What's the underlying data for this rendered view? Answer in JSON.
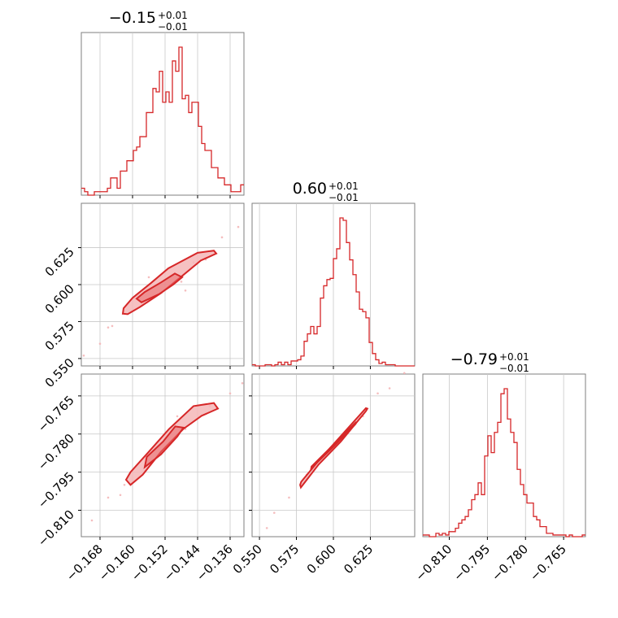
{
  "chart_data": {
    "type": "corner",
    "color": "#d62728",
    "fill_color": "#f4b6b7",
    "grid": true,
    "parameters": [
      {
        "title_main": "−0.15",
        "title_sup": "+0.01",
        "title_sub": "−0.01"
      },
      {
        "title_main": "0.60",
        "title_sup": "+0.01",
        "title_sub": "−0.01"
      },
      {
        "title_main": "−0.79",
        "title_sup": "+0.01",
        "title_sub": "−0.01"
      }
    ],
    "axes": [
      {
        "range": [
          -0.1726,
          -0.1326
        ],
        "ticks": [
          -0.168,
          -0.16,
          -0.152,
          -0.144,
          -0.136
        ],
        "tick_labels": [
          "−0.168",
          "−0.160",
          "−0.152",
          "−0.144",
          "−0.136"
        ]
      },
      {
        "range": [
          0.545,
          0.655
        ],
        "ticks": [
          0.55,
          0.575,
          0.6,
          0.625
        ],
        "tick_labels": [
          "0.550",
          "0.575",
          "0.600",
          "0.625"
        ]
      },
      {
        "range": [
          -0.8204,
          -0.7564
        ],
        "ticks": [
          -0.81,
          -0.795,
          -0.78,
          -0.765
        ],
        "tick_labels": [
          "−0.810",
          "−0.795",
          "−0.780",
          "−0.765"
        ]
      }
    ],
    "histograms": [
      {
        "param": 0,
        "counts": [
          2,
          1,
          0,
          0,
          1,
          1,
          1,
          1,
          2,
          5,
          5,
          2,
          7,
          7,
          10,
          10,
          13,
          14,
          17,
          17,
          24,
          24,
          31,
          30,
          36,
          27,
          30,
          27,
          39,
          36,
          43,
          28,
          29,
          24,
          27,
          27,
          20,
          15,
          13,
          13,
          8,
          8,
          5,
          5,
          3,
          3,
          1,
          1,
          1,
          3
        ]
      },
      {
        "param": 1,
        "counts": [
          1,
          0,
          0,
          0,
          1,
          1,
          0,
          1,
          3,
          1,
          3,
          1,
          4,
          4,
          5,
          8,
          20,
          26,
          32,
          26,
          32,
          55,
          65,
          70,
          71,
          87,
          95,
          120,
          118,
          100,
          86,
          74,
          60,
          46,
          44,
          39,
          19,
          10,
          5,
          2,
          3,
          1,
          1,
          1,
          0,
          0,
          0,
          0,
          0,
          0
        ]
      },
      {
        "param": 2,
        "counts": [
          1,
          1,
          0,
          0,
          2,
          1,
          2,
          1,
          3,
          3,
          5,
          8,
          10,
          12,
          16,
          22,
          25,
          32,
          25,
          48,
          60,
          50,
          62,
          68,
          85,
          88,
          70,
          62,
          56,
          40,
          31,
          25,
          20,
          20,
          12,
          10,
          6,
          6,
          2,
          2,
          1,
          1,
          1,
          1,
          0,
          1,
          0,
          0,
          0,
          1
        ]
      }
    ],
    "scatter": [
      {
        "x_param": 0,
        "y_param": 1,
        "contours": [
          {
            "level": "outer",
            "points": [
              [
                -0.1624,
                0.5803
              ],
              [
                -0.1612,
                0.58
              ],
              [
                -0.1582,
                0.5848
              ],
              [
                -0.153,
                0.5942
              ],
              [
                -0.148,
                0.6054
              ],
              [
                -0.1432,
                0.6163
              ],
              [
                -0.1394,
                0.621
              ],
              [
                -0.14,
                0.623
              ],
              [
                -0.144,
                0.6215
              ],
              [
                -0.1512,
                0.611
              ],
              [
                -0.1555,
                0.601
              ],
              [
                -0.16,
                0.591
              ],
              [
                -0.1622,
                0.584
              ]
            ]
          },
          {
            "level": "inner",
            "points": [
              [
                -0.1578,
                0.588
              ],
              [
                -0.1535,
                0.5935
              ],
              [
                -0.15,
                0.6
              ],
              [
                -0.1478,
                0.605
              ],
              [
                -0.1496,
                0.6075
              ],
              [
                -0.153,
                0.6015
              ],
              [
                -0.157,
                0.595
              ],
              [
                -0.159,
                0.5905
              ]
            ]
          }
        ],
        "points": [
          [
            -0.172,
            0.552
          ],
          [
            -0.168,
            0.56
          ],
          [
            -0.165,
            0.572
          ],
          [
            -0.166,
            0.571
          ],
          [
            -0.142,
            0.617
          ],
          [
            -0.138,
            0.632
          ],
          [
            -0.134,
            0.639
          ],
          [
            -0.145,
            0.615
          ],
          [
            -0.156,
            0.605
          ],
          [
            -0.147,
            0.596
          ],
          [
            -0.148,
            0.602
          ]
        ]
      },
      {
        "x_param": 0,
        "y_param": 2,
        "contours": [
          {
            "level": "outer",
            "points": [
              [
                -0.1616,
                -0.798
              ],
              [
                -0.1605,
                -0.8
              ],
              [
                -0.1575,
                -0.796
              ],
              [
                -0.153,
                -0.787
              ],
              [
                -0.1475,
                -0.778
              ],
              [
                -0.143,
                -0.7728
              ],
              [
                -0.139,
                -0.77
              ],
              [
                -0.14,
                -0.7678
              ],
              [
                -0.145,
                -0.769
              ],
              [
                -0.151,
                -0.778
              ],
              [
                -0.156,
                -0.787
              ],
              [
                -0.1605,
                -0.795
              ]
            ]
          },
          {
            "level": "inner",
            "points": [
              [
                -0.157,
                -0.793
              ],
              [
                -0.153,
                -0.788
              ],
              [
                -0.149,
                -0.781
              ],
              [
                -0.1475,
                -0.7775
              ],
              [
                -0.1495,
                -0.777
              ],
              [
                -0.1525,
                -0.783
              ],
              [
                -0.1565,
                -0.789
              ]
            ]
          }
        ],
        "points": [
          [
            -0.17,
            -0.814
          ],
          [
            -0.166,
            -0.805
          ],
          [
            -0.163,
            -0.804
          ],
          [
            -0.162,
            -0.8
          ],
          [
            -0.141,
            -0.769
          ],
          [
            -0.136,
            -0.764
          ],
          [
            -0.133,
            -0.76
          ],
          [
            -0.147,
            -0.778
          ],
          [
            -0.152,
            -0.785
          ],
          [
            -0.149,
            -0.773
          ]
        ]
      },
      {
        "x_param": 1,
        "y_param": 2,
        "contours": [
          {
            "level": "outer",
            "points": [
              [
                0.5775,
                -0.8
              ],
              [
                0.578,
                -0.801
              ],
              [
                0.59,
                -0.792
              ],
              [
                0.605,
                -0.783
              ],
              [
                0.622,
                -0.771
              ],
              [
                0.623,
                -0.77
              ],
              [
                0.622,
                -0.7698
              ],
              [
                0.605,
                -0.7808
              ],
              [
                0.59,
                -0.7905
              ],
              [
                0.5782,
                -0.7988
              ]
            ]
          },
          {
            "level": "inner",
            "points": [
              [
                0.585,
                -0.7935
              ],
              [
                0.6,
                -0.785
              ],
              [
                0.615,
                -0.776
              ],
              [
                0.6155,
                -0.7752
              ],
              [
                0.6,
                -0.7842
              ],
              [
                0.5852,
                -0.7928
              ]
            ]
          }
        ],
        "points": [
          [
            0.555,
            -0.817
          ],
          [
            0.56,
            -0.811
          ],
          [
            0.57,
            -0.805
          ],
          [
            0.63,
            -0.764
          ],
          [
            0.638,
            -0.762
          ],
          [
            0.648,
            -0.756
          ],
          [
            0.62,
            -0.773
          ],
          [
            0.582,
            -0.796
          ]
        ]
      }
    ]
  }
}
